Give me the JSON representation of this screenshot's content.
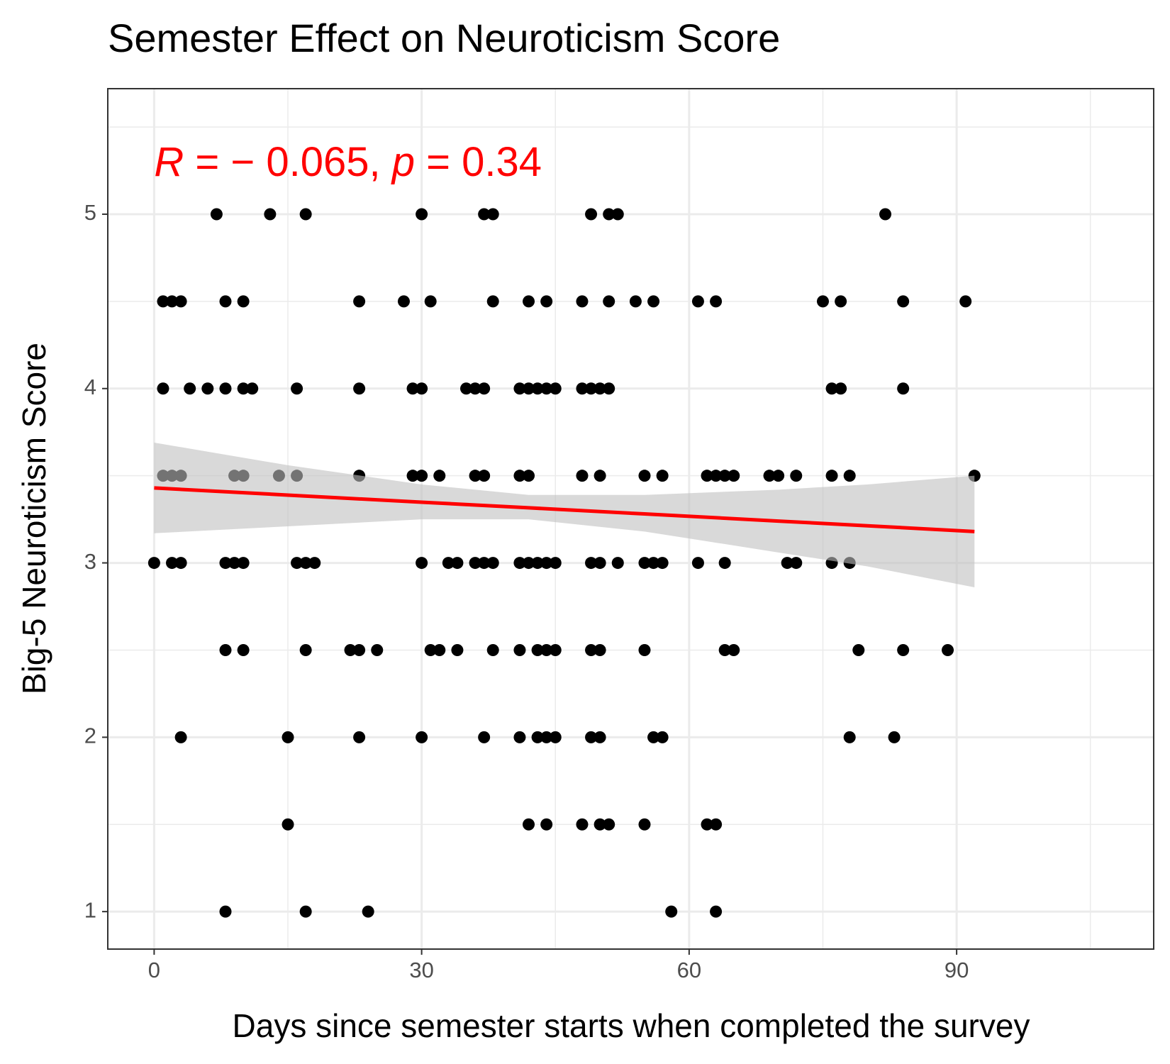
{
  "chart_data": {
    "type": "scatter",
    "title": "Semester Effect on Neuroticism Score",
    "x_label": "Days since semester starts when completed the survey",
    "y_label": "Big-5 Neuroticism Score",
    "annotation": [
      "R",
      " = − 0.065, ",
      "p",
      " = 0.34"
    ],
    "annotation_color": "#ff0000",
    "xlim": [
      -5.2,
      112.1
    ],
    "ylim": [
      0.785,
      5.72
    ],
    "xticks": [
      0,
      30,
      60,
      90
    ],
    "yticks": [
      1,
      2,
      3,
      4,
      5
    ],
    "xminor": [
      15,
      45,
      75,
      105
    ],
    "yminor": [
      1.5,
      2.5,
      3.5,
      4.5,
      5.5
    ],
    "grid": true,
    "series": [
      {
        "color": "#000000",
        "x": [
          7,
          13,
          17,
          30,
          37,
          38,
          49,
          51,
          52,
          82,
          1,
          2,
          3,
          8,
          10,
          23,
          28,
          31,
          38,
          42,
          44,
          48,
          51,
          54,
          56,
          61,
          63,
          75,
          77,
          84,
          91,
          1,
          4,
          6,
          8,
          10,
          11,
          16,
          23,
          29,
          30,
          35,
          36,
          37,
          41,
          42,
          43,
          44,
          45,
          48,
          49,
          50,
          51,
          76,
          77,
          84,
          1,
          2,
          3,
          9,
          10,
          14,
          16,
          23,
          29,
          30,
          32,
          36,
          37,
          41,
          42,
          48,
          50,
          55,
          57,
          62,
          63,
          64,
          65,
          69,
          70,
          72,
          76,
          78,
          92,
          0,
          2,
          3,
          8,
          9,
          10,
          16,
          17,
          18,
          30,
          33,
          34,
          36,
          37,
          38,
          41,
          42,
          43,
          44,
          45,
          49,
          50,
          52,
          55,
          56,
          57,
          61,
          64,
          71,
          72,
          76,
          78,
          8,
          10,
          17,
          22,
          23,
          25,
          31,
          32,
          34,
          38,
          41,
          43,
          44,
          45,
          49,
          50,
          55,
          64,
          65,
          79,
          84,
          89,
          3,
          15,
          23,
          30,
          37,
          41,
          43,
          44,
          45,
          49,
          50,
          56,
          57,
          78,
          83,
          15,
          42,
          44,
          48,
          50,
          51,
          55,
          62,
          63,
          8,
          17,
          24,
          58,
          63
        ],
        "values": [
          5,
          5,
          5,
          5,
          5,
          5,
          5,
          5,
          5,
          5,
          4.5,
          4.5,
          4.5,
          4.5,
          4.5,
          4.5,
          4.5,
          4.5,
          4.5,
          4.5,
          4.5,
          4.5,
          4.5,
          4.5,
          4.5,
          4.5,
          4.5,
          4.5,
          4.5,
          4.5,
          4.5,
          4,
          4,
          4,
          4,
          4,
          4,
          4,
          4,
          4,
          4,
          4,
          4,
          4,
          4,
          4,
          4,
          4,
          4,
          4,
          4,
          4,
          4,
          4,
          4,
          4,
          3.5,
          3.5,
          3.5,
          3.5,
          3.5,
          3.5,
          3.5,
          3.5,
          3.5,
          3.5,
          3.5,
          3.5,
          3.5,
          3.5,
          3.5,
          3.5,
          3.5,
          3.5,
          3.5,
          3.5,
          3.5,
          3.5,
          3.5,
          3.5,
          3.5,
          3.5,
          3.5,
          3.5,
          3.5,
          3,
          3,
          3,
          3,
          3,
          3,
          3,
          3,
          3,
          3,
          3,
          3,
          3,
          3,
          3,
          3,
          3,
          3,
          3,
          3,
          3,
          3,
          3,
          3,
          3,
          3,
          3,
          3,
          3,
          3,
          3,
          3,
          2.5,
          2.5,
          2.5,
          2.5,
          2.5,
          2.5,
          2.5,
          2.5,
          2.5,
          2.5,
          2.5,
          2.5,
          2.5,
          2.5,
          2.5,
          2.5,
          2.5,
          2.5,
          2.5,
          2.5,
          2.5,
          2.5,
          2,
          2,
          2,
          2,
          2,
          2,
          2,
          2,
          2,
          2,
          2,
          2,
          2,
          2,
          2,
          1.5,
          1.5,
          1.5,
          1.5,
          1.5,
          1.5,
          1.5,
          1.5,
          1.5,
          1,
          1,
          1,
          1,
          1
        ]
      }
    ],
    "fit": {
      "color": "#ff0000",
      "band_color": "#bfbfbf",
      "x": [
        0,
        15,
        30,
        42,
        55,
        70,
        80,
        92
      ],
      "values": [
        3.43,
        3.389,
        3.348,
        3.316,
        3.281,
        3.24,
        3.213,
        3.18
      ],
      "lower": [
        3.17,
        3.21,
        3.25,
        3.25,
        3.18,
        3.06,
        2.98,
        2.86
      ],
      "upper": [
        3.69,
        3.56,
        3.45,
        3.39,
        3.39,
        3.42,
        3.45,
        3.5
      ]
    }
  }
}
